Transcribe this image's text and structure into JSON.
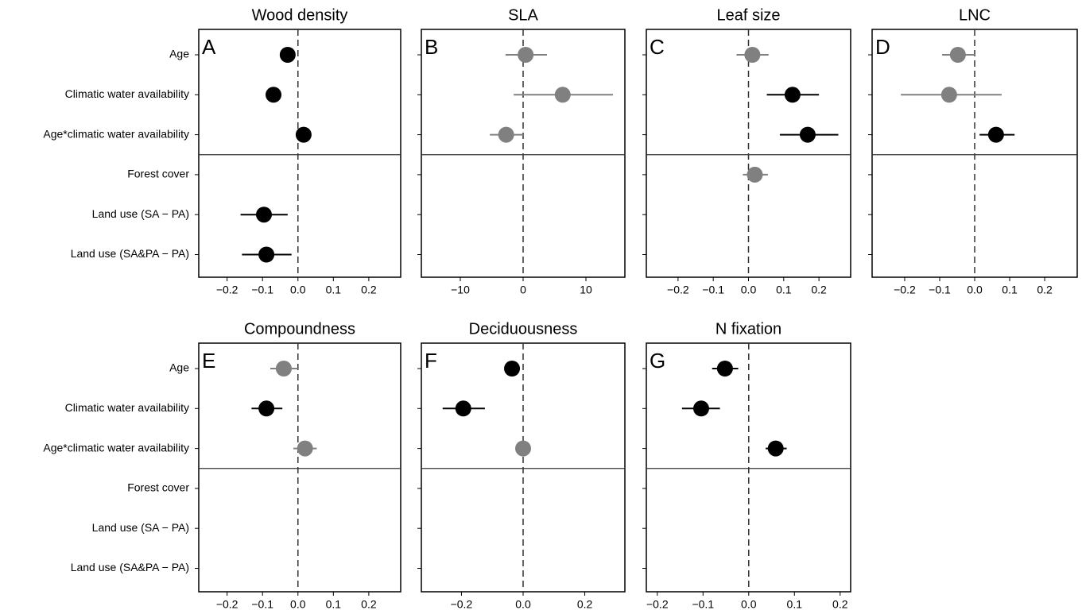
{
  "chart_data": [
    {
      "type": "coefplot",
      "title": "Wood density",
      "panel_label": "A",
      "categories": [
        "Age",
        "Climatic water availability",
        "Age*climatic water availability",
        "Forest cover",
        "Land use (SA − PA)",
        "Land use (SA&PA − PA)"
      ],
      "values": [
        -0.029,
        -0.069,
        0.016,
        null,
        -0.096,
        -0.089
      ],
      "lower": [
        -0.035,
        -0.075,
        0.01,
        null,
        -0.162,
        -0.158
      ],
      "upper": [
        -0.023,
        -0.063,
        0.022,
        null,
        -0.029,
        -0.018
      ],
      "colors": [
        "#000000",
        "#000000",
        "#000000",
        null,
        "#000000",
        "#000000"
      ],
      "xlim": [
        -0.28,
        0.29
      ],
      "xticks": [
        {
          "value": -0.2,
          "label": "−0.2"
        },
        {
          "value": -0.1,
          "label": "−0.1"
        },
        {
          "value": 0,
          "label": "0.0"
        },
        0.1,
        0.2
      ],
      "refline": 0
    },
    {
      "type": "coefplot",
      "title": "SLA",
      "panel_label": "B",
      "categories": [
        null,
        null,
        null,
        null,
        null,
        null
      ],
      "values": [
        0.4,
        6.3,
        -2.7,
        null,
        null,
        null
      ],
      "lower": [
        -2.8,
        -1.5,
        -5.3,
        null,
        null,
        null
      ],
      "upper": [
        3.8,
        14.3,
        0,
        null,
        null,
        null
      ],
      "colors": [
        "#808080",
        "#808080",
        "#808080",
        null,
        null,
        null
      ],
      "xlim": [
        -16.2,
        16.2
      ],
      "xticks": [
        {
          "value": -10,
          "label": "−10"
        },
        0,
        10
      ],
      "refline": 0
    },
    {
      "type": "coefplot",
      "title": "Leaf size",
      "panel_label": "C",
      "categories": [
        null,
        null,
        null,
        null,
        null,
        null
      ],
      "values": [
        0.011,
        0.125,
        0.168,
        0.018,
        null,
        null
      ],
      "lower": [
        -0.034,
        0.052,
        0.089,
        -0.016,
        null,
        null
      ],
      "upper": [
        0.057,
        0.2,
        0.255,
        0.055,
        null,
        null
      ],
      "colors": [
        "#808080",
        "#000000",
        "#000000",
        "#808080",
        null,
        null
      ],
      "xlim": [
        -0.29,
        0.29
      ],
      "xticks": [
        {
          "value": -0.2,
          "label": "−0.2"
        },
        {
          "value": -0.1,
          "label": "−0.1"
        },
        {
          "value": 0,
          "label": "0.0"
        },
        0.1,
        0.2
      ],
      "refline": 0
    },
    {
      "type": "coefplot",
      "title": "LNC",
      "panel_label": "D",
      "categories": [
        null,
        null,
        null,
        null,
        null,
        null
      ],
      "values": [
        -0.048,
        -0.073,
        0.061,
        null,
        null,
        null
      ],
      "lower": [
        -0.093,
        -0.211,
        0.014,
        null,
        null,
        null
      ],
      "upper": [
        0,
        0.077,
        0.114,
        null,
        null,
        null
      ],
      "colors": [
        "#808080",
        "#808080",
        "#000000",
        null,
        null,
        null
      ],
      "xlim": [
        -0.293,
        0.293
      ],
      "xticks": [
        {
          "value": -0.2,
          "label": "−0.2"
        },
        {
          "value": -0.1,
          "label": "−0.1"
        },
        {
          "value": 0,
          "label": "0.0"
        },
        0.1,
        0.2
      ],
      "refline": 0
    },
    {
      "type": "coefplot",
      "title": "Compoundness",
      "panel_label": "E",
      "categories": [
        "Age",
        "Climatic water availability",
        "Age*climatic water availability",
        "Forest cover",
        "Land use (SA − PA)",
        "Land use (SA&PA − PA)"
      ],
      "values": [
        -0.04,
        -0.089,
        0.02,
        null,
        null,
        null
      ],
      "lower": [
        -0.078,
        -0.131,
        -0.013,
        null,
        null,
        null
      ],
      "upper": [
        0,
        -0.044,
        0.053,
        null,
        null,
        null
      ],
      "colors": [
        "#808080",
        "#000000",
        "#808080",
        null,
        null,
        null
      ],
      "xlim": [
        -0.28,
        0.29
      ],
      "xticks": [
        {
          "value": -0.2,
          "label": "−0.2"
        },
        {
          "value": -0.1,
          "label": "−0.1"
        },
        {
          "value": 0,
          "label": "0.0"
        },
        0.1,
        0.2
      ],
      "refline": 0
    },
    {
      "type": "coefplot",
      "title": "Deciduousness",
      "panel_label": "F",
      "categories": [
        null,
        null,
        null,
        null,
        null,
        null
      ],
      "values": [
        -0.036,
        -0.194,
        0,
        null,
        null,
        null
      ],
      "lower": [
        -0.059,
        -0.261,
        -0.023,
        null,
        null,
        null
      ],
      "upper": [
        -0.015,
        -0.124,
        0.023,
        null,
        null,
        null
      ],
      "colors": [
        "#000000",
        "#000000",
        "#808080",
        null,
        null,
        null
      ],
      "xlim": [
        -0.33,
        0.33
      ],
      "xticks": [
        {
          "value": -0.2,
          "label": "−0.2"
        },
        {
          "value": 0,
          "label": "0.0"
        },
        0.2
      ],
      "refline": 0
    },
    {
      "type": "coefplot",
      "title": "N fixation",
      "panel_label": "G",
      "categories": [
        null,
        null,
        null,
        null,
        null,
        null
      ],
      "values": [
        -0.052,
        -0.104,
        0.059,
        null,
        null,
        null
      ],
      "lower": [
        -0.08,
        -0.146,
        0.037,
        null,
        null,
        null
      ],
      "upper": [
        -0.023,
        -0.063,
        0.083,
        null,
        null,
        null
      ],
      "colors": [
        "#000000",
        "#000000",
        "#000000",
        null,
        null,
        null
      ],
      "xlim": [
        -0.224,
        0.223
      ],
      "xticks": [
        {
          "value": -0.2,
          "label": "−0.2"
        },
        {
          "value": -0.1,
          "label": "−0.1"
        },
        {
          "value": 0,
          "label": "0.0"
        },
        0.1,
        0.2
      ],
      "refline": 0
    }
  ]
}
